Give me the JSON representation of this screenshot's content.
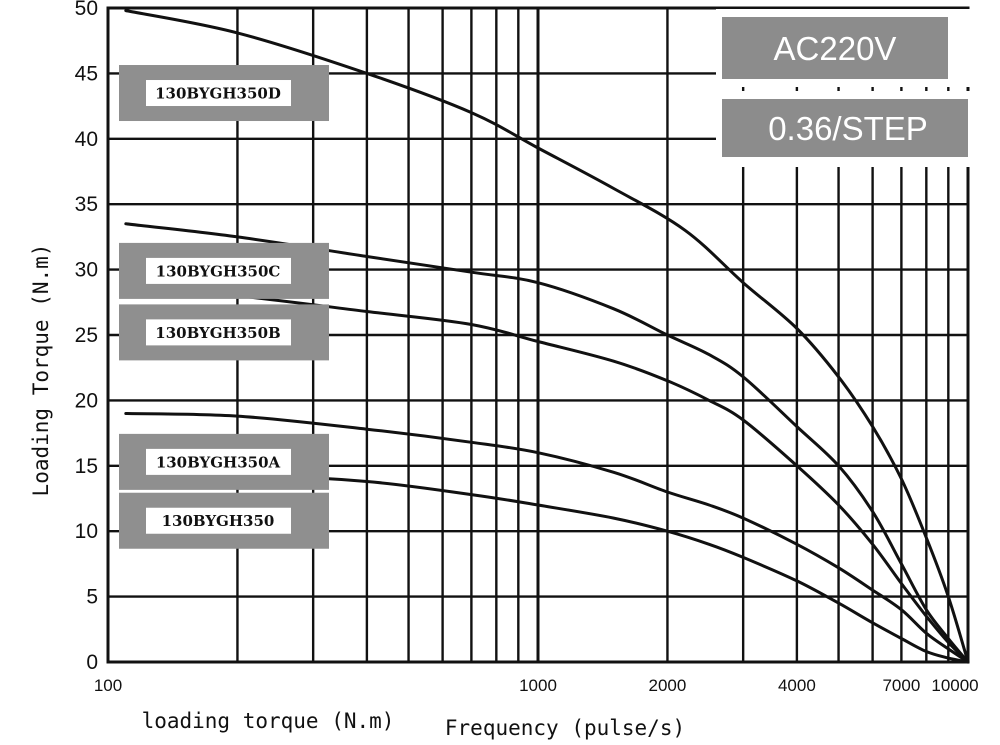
{
  "chart_data": {
    "type": "line",
    "title": "",
    "xlabel": "Frequency (pulse/s)",
    "ylabel": "Loading Torque (N.m)",
    "secondary_label": "loading torque (N.m)",
    "x_scale": "log",
    "xlim": [
      100,
      10000
    ],
    "ylim": [
      0,
      50
    ],
    "x_tick_labels": [
      "100",
      "1000",
      "2000",
      "4000",
      "7000",
      "10000"
    ],
    "x_tick_values": [
      100,
      1000,
      2000,
      4000,
      7000,
      10000
    ],
    "y_ticks": [
      0,
      5,
      10,
      15,
      20,
      25,
      30,
      35,
      40,
      45,
      50
    ],
    "grid": true,
    "info_boxes": [
      "AC220V",
      "0.36/STEP"
    ],
    "series": [
      {
        "name": "130BYGH350D",
        "x": [
          110,
          200,
          400,
          700,
          1000,
          1500,
          2200,
          3000,
          4000,
          5000,
          6000,
          7000,
          8000,
          9000,
          10000
        ],
        "y": [
          49.8,
          48.1,
          45.0,
          42.0,
          39.3,
          36.2,
          33.0,
          29.0,
          25.5,
          21.8,
          18.0,
          14.0,
          9.5,
          5.0,
          0
        ]
      },
      {
        "name": "130BYGH350C",
        "x": [
          110,
          200,
          400,
          700,
          1000,
          1500,
          2000,
          2500,
          3000,
          4000,
          5000,
          6000,
          7000,
          8000,
          9000,
          10000
        ],
        "y": [
          33.5,
          32.5,
          31.0,
          29.8,
          29.0,
          27.0,
          25.0,
          23.5,
          21.8,
          18.0,
          15.0,
          11.5,
          7.5,
          4.0,
          1.8,
          0
        ]
      },
      {
        "name": "130BYGH350B",
        "x": [
          110,
          200,
          400,
          700,
          1000,
          1500,
          2000,
          2500,
          3000,
          4000,
          5000,
          6000,
          7000,
          8000,
          9000,
          10000
        ],
        "y": [
          28.8,
          28.0,
          26.8,
          25.8,
          24.5,
          23.0,
          21.5,
          20.0,
          18.5,
          15.0,
          12.0,
          9.0,
          6.0,
          3.5,
          1.5,
          0
        ]
      },
      {
        "name": "130BYGH350A",
        "x": [
          110,
          200,
          400,
          700,
          1000,
          1500,
          2000,
          2500,
          3000,
          4000,
          5000,
          6000,
          7000,
          8000,
          9000,
          10000
        ],
        "y": [
          19.0,
          18.8,
          17.8,
          16.8,
          16.0,
          14.5,
          13.0,
          12.0,
          11.0,
          9.0,
          7.2,
          5.5,
          4.0,
          2.2,
          1.0,
          0
        ]
      },
      {
        "name": "130BYGH350",
        "x": [
          110,
          200,
          400,
          700,
          1000,
          1500,
          2000,
          2500,
          3000,
          4000,
          5000,
          6000,
          7000,
          8000,
          9000,
          10000
        ],
        "y": [
          14.2,
          14.3,
          13.8,
          12.8,
          12.0,
          11.0,
          10.0,
          9.0,
          8.0,
          6.2,
          4.5,
          3.0,
          1.8,
          0.8,
          0.3,
          0
        ]
      }
    ]
  }
}
